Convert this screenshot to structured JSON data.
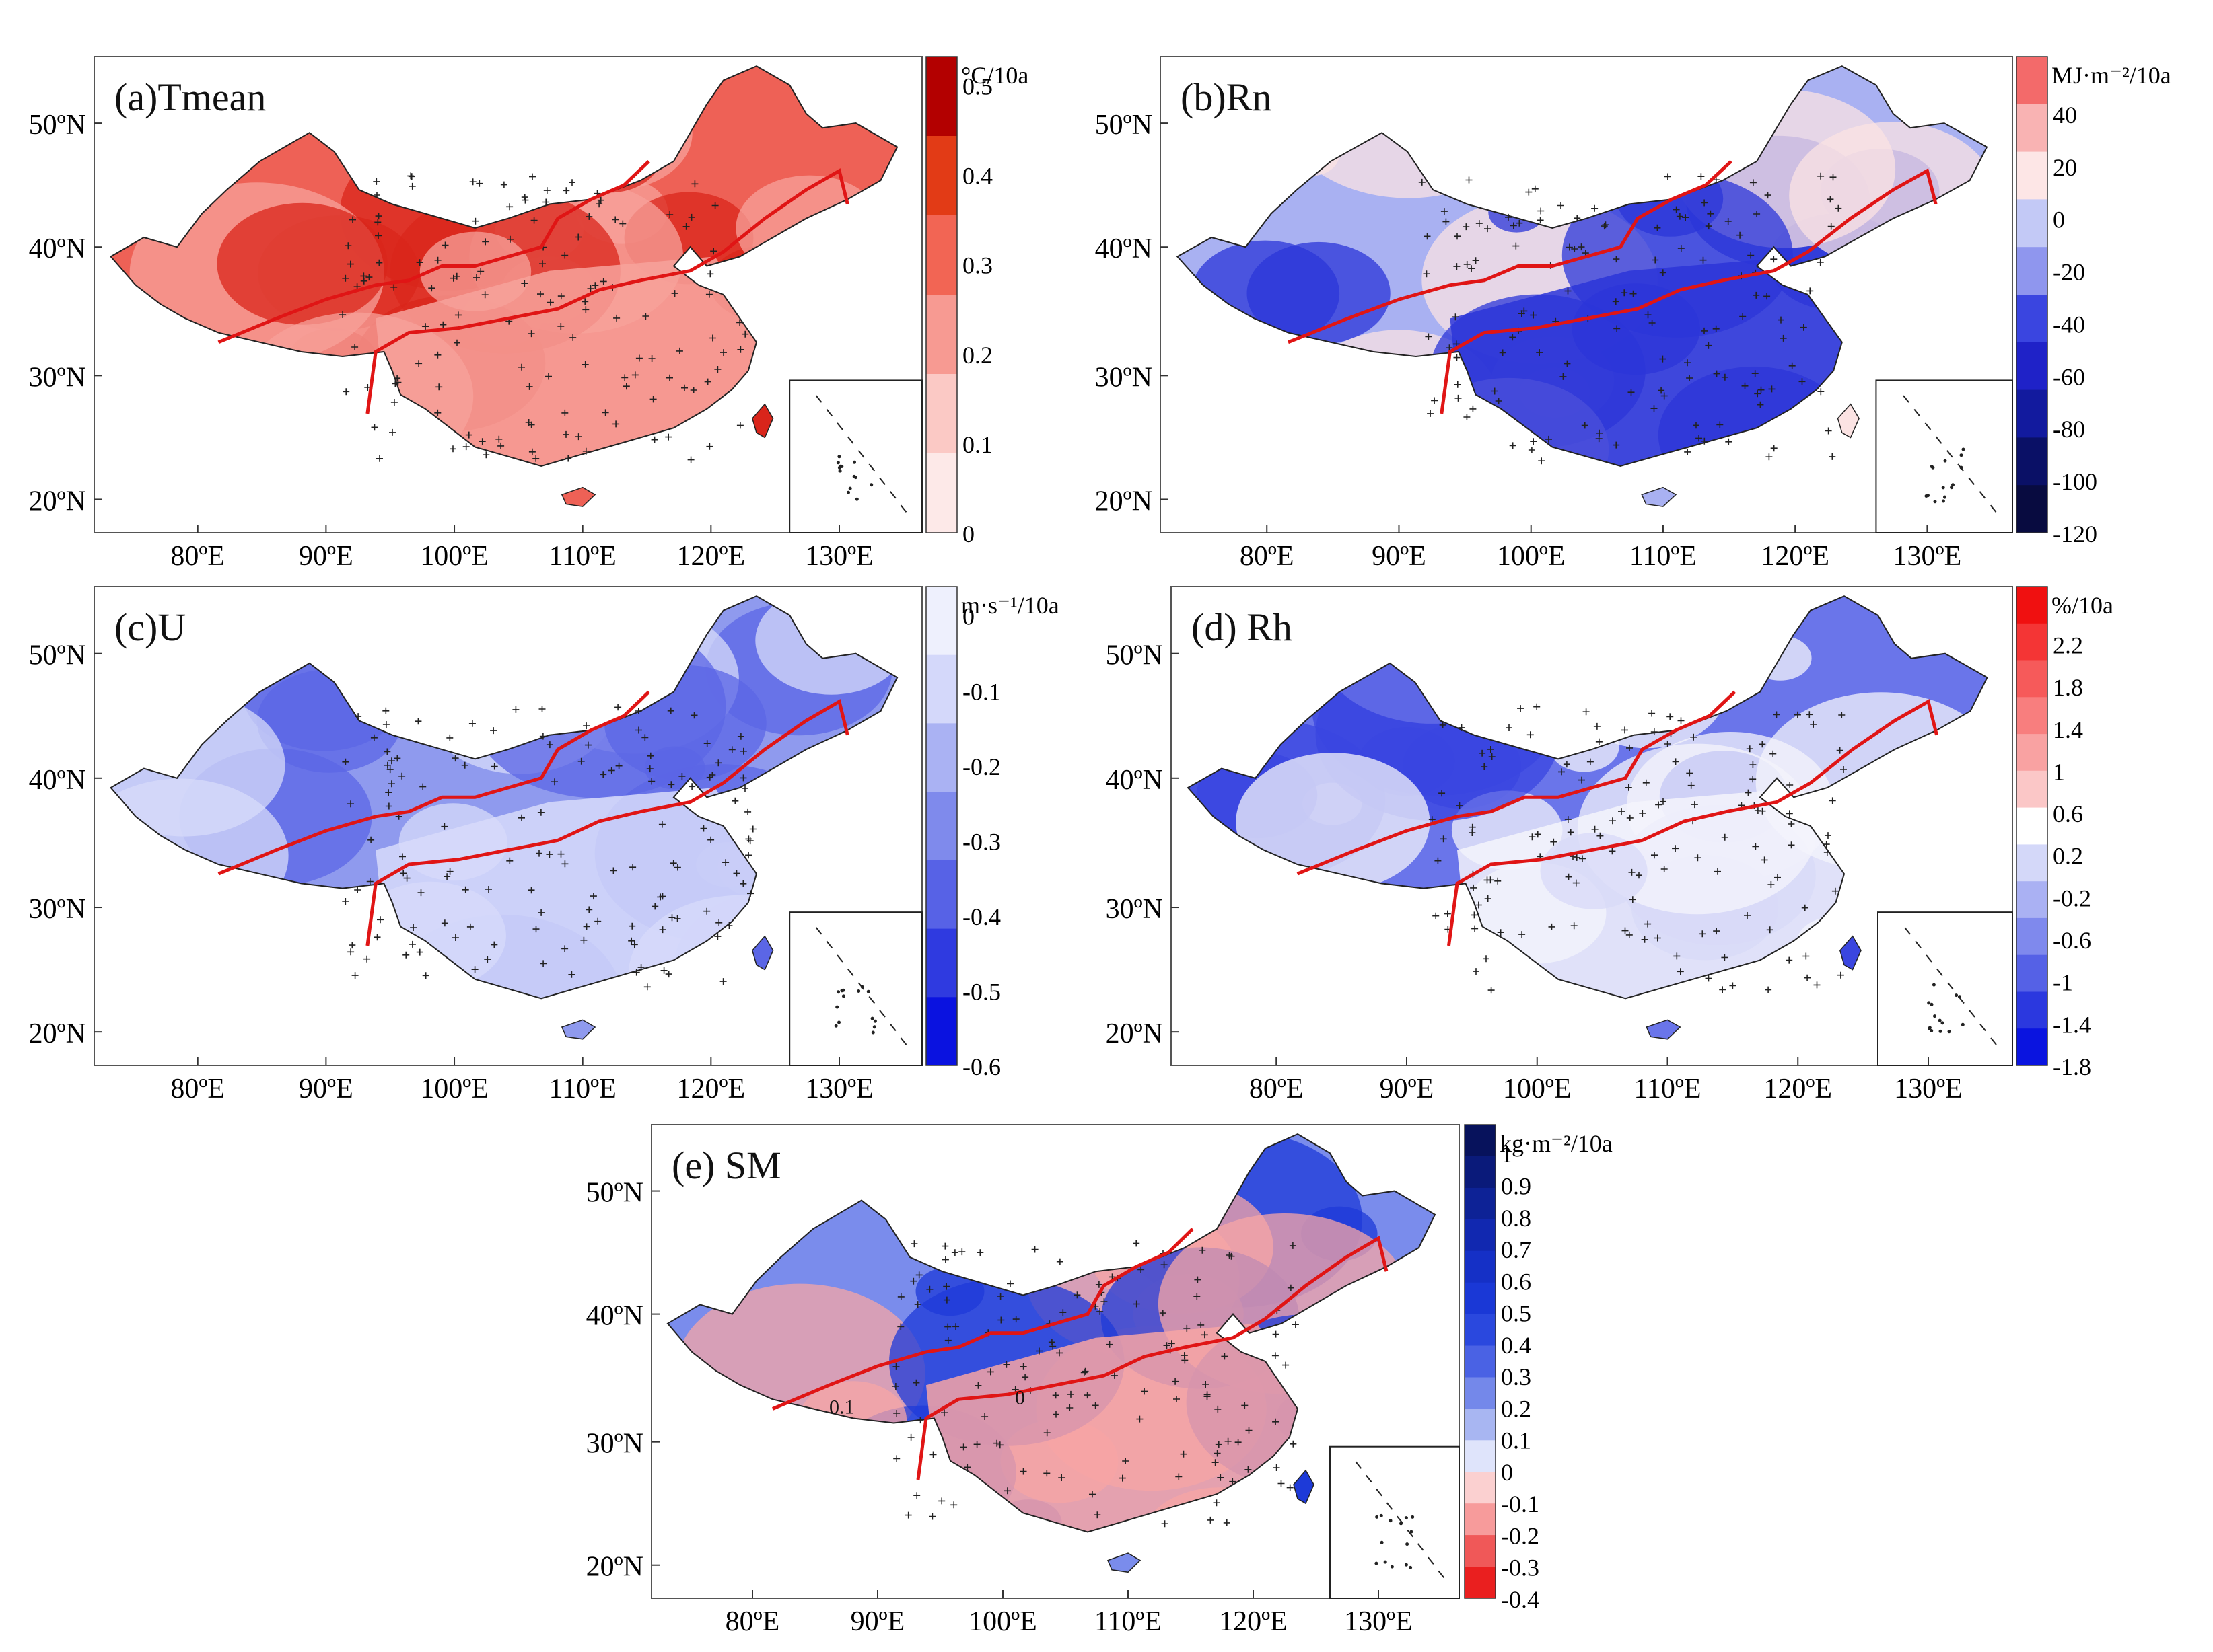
{
  "figure": {
    "panels": [
      {
        "id": "a",
        "title": "(a)Tmean",
        "unit": "°C/10a",
        "palette": "red",
        "colorbar": [
          "0.5",
          "0.4",
          "0.3",
          "0.2",
          "0.1",
          "0"
        ],
        "colorbar_colors": [
          "#b30000",
          "#e23b16",
          "#f26554",
          "#f79a92",
          "#fbc9c5",
          "#fde9e8"
        ],
        "map_fill": "#ee6156",
        "map_fill_2": "#f7a29b",
        "map_fill_3": "#d9251b",
        "lat_labels": [
          "50ºN",
          "40ºN",
          "30ºN",
          "20ºN"
        ],
        "lon_labels": [
          "80ºE",
          "90ºE",
          "100ºE",
          "110ºE",
          "120ºE",
          "130ºE"
        ]
      },
      {
        "id": "b",
        "title": "(b)Rn",
        "unit": "MJ·m⁻²/10a",
        "palette": "blue",
        "colorbar": [
          "40",
          "20",
          "0",
          "-20",
          "-40",
          "-60",
          "-80",
          "-100",
          "-120"
        ],
        "colorbar_colors": [
          "#f36a6a",
          "#f9b3b3",
          "#fde6e6",
          "#c3c9f6",
          "#8f96ee",
          "#3a45e0",
          "#1f22c8",
          "#121a9e",
          "#0a1066",
          "#080b40"
        ],
        "map_fill": "#a9b1f2",
        "map_fill_2": "#2b35d8",
        "map_fill_3": "#fbe3e3",
        "lat_labels": [
          "50ºN",
          "40ºN",
          "30ºN",
          "20ºN"
        ],
        "lon_labels": [
          "80ºE",
          "90ºE",
          "100ºE",
          "110ºE",
          "120ºE",
          "130ºE"
        ]
      },
      {
        "id": "c",
        "title": "(c)U",
        "unit": "m·s⁻¹/10a",
        "palette": "blue",
        "colorbar": [
          "0",
          "-0.1",
          "-0.2",
          "-0.3",
          "-0.4",
          "-0.5",
          "-0.6"
        ],
        "colorbar_colors": [
          "#eef0fd",
          "#d4d8fa",
          "#aab2f3",
          "#7f8aec",
          "#5762e6",
          "#2f3ae0",
          "#0a12e0"
        ],
        "map_fill": "#8f9aee",
        "map_fill_2": "#d7dbfa",
        "map_fill_3": "#5b66e6",
        "lat_labels": [
          "50ºN",
          "40ºN",
          "30ºN",
          "20ºN"
        ],
        "lon_labels": [
          "80ºE",
          "90ºE",
          "100ºE",
          "110ºE",
          "120ºE",
          "130ºE"
        ]
      },
      {
        "id": "d",
        "title": "(d) Rh",
        "unit": "%/10a",
        "palette": "div",
        "colorbar": [
          "2.2",
          "1.8",
          "1.4",
          "1",
          "0.6",
          "0.2",
          "-0.2",
          "-0.6",
          "-1",
          "-1.4",
          "-1.8"
        ],
        "colorbar_colors": [
          "#f01010",
          "#f43535",
          "#f65a5a",
          "#f87e7e",
          "#f9a2a2",
          "#fbc7c7",
          "#ffffff",
          "#d4d8f9",
          "#aab1f3",
          "#7f89ed",
          "#5561e6",
          "#2b38df",
          "#0a14e0"
        ],
        "map_fill": "#6a75ea",
        "map_fill_2": "#f4f4fb",
        "map_fill_3": "#3a46e0",
        "lat_labels": [
          "50ºN",
          "40ºN",
          "30ºN",
          "20ºN"
        ],
        "lon_labels": [
          "80ºE",
          "90ºE",
          "100ºE",
          "110ºE",
          "120ºE",
          "130ºE"
        ]
      },
      {
        "id": "e",
        "title": "(e) SM",
        "unit": "kg·m⁻²/10a",
        "palette": "div",
        "colorbar": [
          "1",
          "0.9",
          "0.8",
          "0.7",
          "0.6",
          "0.5",
          "0.4",
          "0.3",
          "0.2",
          "0.1",
          "0",
          "-0.1",
          "-0.2",
          "-0.3",
          "-0.4"
        ],
        "colorbar_colors": [
          "#07125c",
          "#0a1a7a",
          "#0d2296",
          "#1128b0",
          "#1530c6",
          "#1a38d6",
          "#2a48de",
          "#4a62e4",
          "#7488ea",
          "#a8b6f2",
          "#dfe4fb",
          "#fbd0d0",
          "#f79b9b",
          "#f05858",
          "#ea1f1f"
        ],
        "map_fill": "#7a8cec",
        "map_fill_2": "#f7a5a5",
        "map_fill_3": "#1d3ad8",
        "lat_labels": [
          "50ºN",
          "40ºN",
          "30ºN",
          "20ºN"
        ],
        "lon_labels": [
          "80ºE",
          "90ºE",
          "100ºE",
          "110ºE",
          "120ºE",
          "130ºE"
        ],
        "contour_labels": [
          "0.1",
          "0"
        ]
      }
    ],
    "colors": {
      "boundary": "#e01515",
      "outline": "#222222",
      "frame": "#555555"
    }
  }
}
